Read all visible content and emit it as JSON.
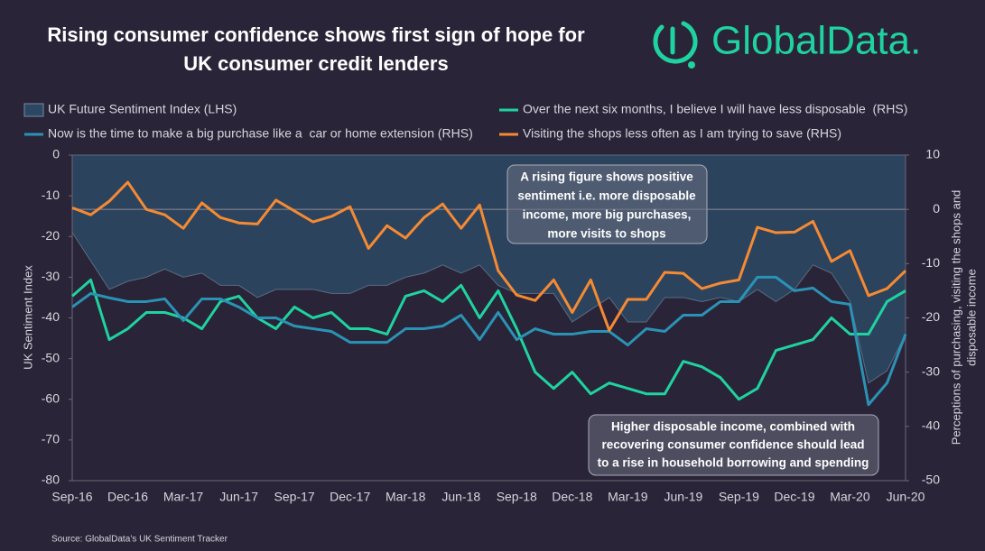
{
  "chart_data": {
    "type": "line",
    "title": [
      "Rising consumer confidence shows first sign of hope for",
      "UK consumer credit lenders"
    ],
    "logo": "GlobalData.",
    "source": "Source: GlobalData’s UK Sentiment Tracker",
    "ylabel": "UK Sentiment Index",
    "y2label": [
      "Perceptions of purchasing, visiting the shops and",
      "disposable income"
    ],
    "annotations": [
      {
        "lines": [
          "A rising figure shows positive",
          "sentiment i.e. more disposable",
          "income, more big purchases,",
          "more visits to shops"
        ]
      },
      {
        "lines": [
          "Higher disposable income, combined with",
          "recovering consumer confidence should lead",
          "to a rise in household borrowing and spending"
        ]
      }
    ],
    "categories": [
      "Sep-16",
      null,
      null,
      "Dec-16",
      null,
      null,
      "Mar-17",
      null,
      null,
      "Jun-17",
      null,
      null,
      "Sep-17",
      null,
      null,
      "Dec-17",
      null,
      null,
      "Mar-18",
      null,
      null,
      "Jun-18",
      null,
      null,
      "Sep-18",
      null,
      null,
      "Dec-18",
      null,
      null,
      "Mar-19",
      null,
      null,
      "Jun-19",
      null,
      null,
      "Sep-19",
      null,
      null,
      "Dec-19",
      null,
      null,
      "Mar-20",
      null,
      null,
      "Jun-20"
    ],
    "ylim": [
      -80,
      0
    ],
    "yticks": [
      0,
      -10,
      -20,
      -30,
      -40,
      -50,
      -60,
      -70,
      -80
    ],
    "y2lim": [
      -50,
      10
    ],
    "y2ticks": [
      10,
      0,
      -10,
      -20,
      -30,
      -40,
      -50
    ],
    "series": [
      {
        "name": "UK Future Sentiment Index (LHS)",
        "type": "area",
        "color": "#2c4763",
        "values": [
          -19,
          -26,
          -33,
          -31,
          -30,
          -28,
          -30,
          -29,
          -32,
          -32,
          -35,
          -33,
          -33,
          -33,
          -34,
          -34,
          -32,
          -32,
          -30,
          -29,
          -27,
          -29,
          -27,
          -32,
          -34,
          -34,
          -34,
          -41,
          -38,
          -35,
          -41,
          -41,
          -35,
          -35,
          -36,
          -35,
          -36,
          -33,
          -36,
          -33,
          -27,
          -29,
          -36,
          -56,
          -53,
          -44
        ]
      },
      {
        "name": "Over the next six months, I believe I will have less disposable  (RHS)",
        "type": "line",
        "axis": "y2",
        "color": "#1fd3a0",
        "values": [
          -16,
          -13,
          -24,
          -22,
          -19,
          -19,
          -20,
          -22,
          -17,
          -16,
          -20,
          -22,
          -18,
          -20,
          -19,
          -22,
          -22,
          -23,
          -16,
          -15,
          -17,
          -14,
          -20,
          -15,
          -22,
          -30,
          -33,
          -30,
          -34,
          -32,
          -33,
          -34,
          -34,
          -28,
          -29,
          -31,
          -35,
          -33,
          -26,
          -25,
          -24,
          -20,
          -23,
          -23,
          -17,
          -15
        ]
      },
      {
        "name": "Now is the time to make a big purchase like a  car or home extension (RHS)",
        "type": "line",
        "axis": "y2",
        "color": "#2a93b5",
        "values": [
          -18,
          -15.5,
          -16.3,
          -17,
          -17,
          -16.5,
          -20.5,
          -16.5,
          -16.5,
          -18,
          -20,
          -20,
          -21.5,
          -22,
          -22.5,
          -24.5,
          -24.5,
          -24.5,
          -22,
          -22,
          -21.5,
          -19.5,
          -24,
          -19,
          -24,
          -22,
          -23,
          -23,
          -22.5,
          -22.5,
          -25,
          -22,
          -22.5,
          -19.5,
          -19.5,
          -17,
          -17,
          -12.5,
          -12.5,
          -15,
          -14.5,
          -17,
          -17.5,
          -36,
          -32,
          -23
        ]
      },
      {
        "name": "Visiting the shops less often as I am trying to save (RHS)",
        "type": "line",
        "axis": "y2",
        "color": "#f58a33",
        "values": [
          0.3,
          -1,
          1.5,
          5,
          0,
          -1,
          -3.5,
          1.2,
          -1.5,
          -2.5,
          -2.7,
          1.7,
          -0.3,
          -2.3,
          -1.3,
          0.5,
          -7.2,
          -3,
          -5.3,
          -1.5,
          1,
          -3.5,
          0.8,
          -11.3,
          -15.8,
          -16.8,
          -13,
          -19,
          -13,
          -22.3,
          -16.6,
          -16.6,
          -11.6,
          -11.8,
          -14.6,
          -13.6,
          -13,
          -3.3,
          -4.3,
          -4.2,
          -2.2,
          -9.6,
          -7.6,
          -15.9,
          -14.6,
          -11.3
        ]
      }
    ]
  }
}
